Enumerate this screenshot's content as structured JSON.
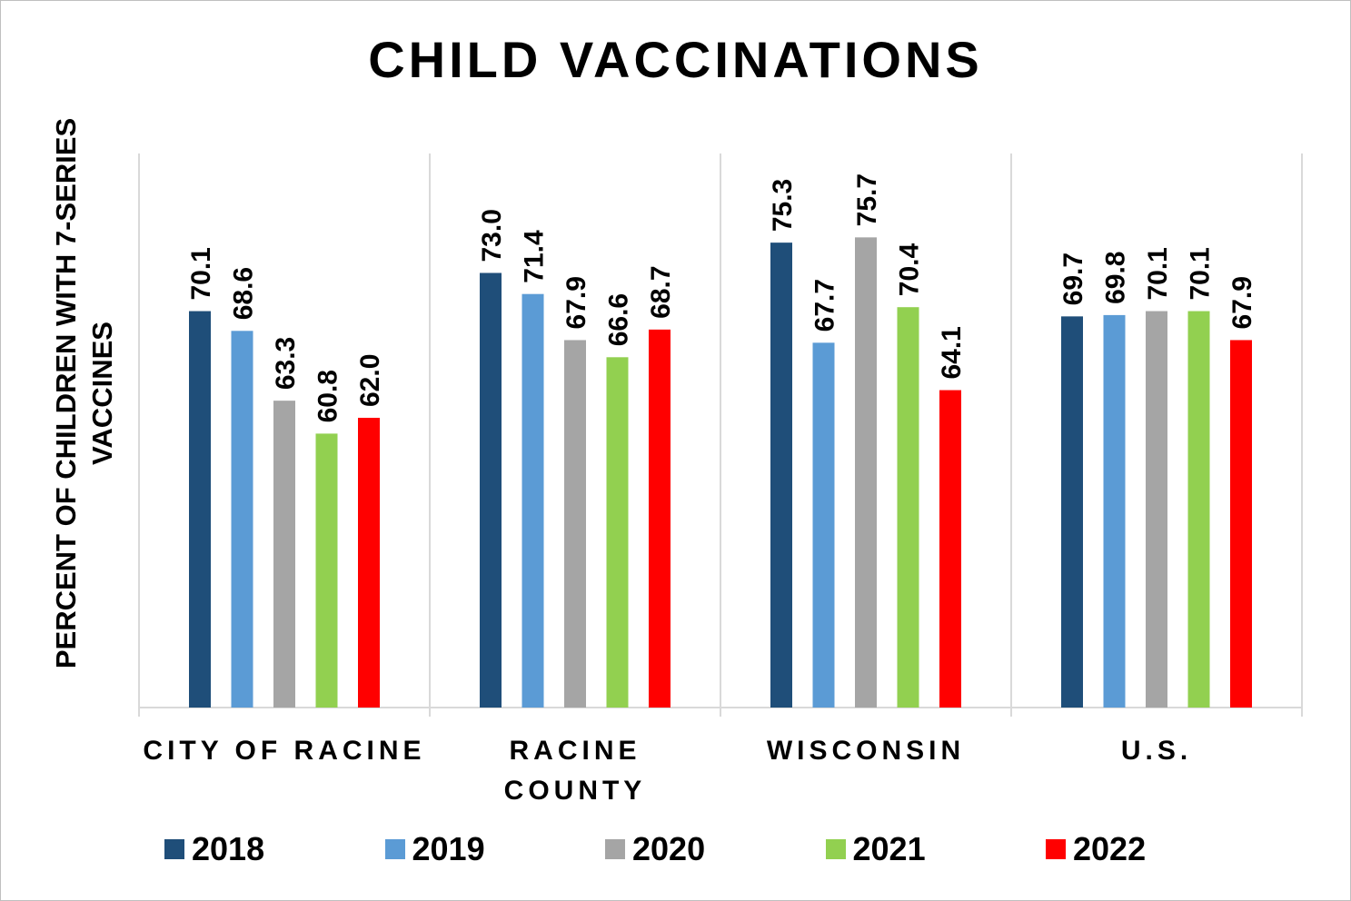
{
  "chart_data": {
    "type": "bar",
    "title": "CHILD VACCINATIONS",
    "ylabel": "PERCENT OF CHILDREN WITH 7-SERIES VACCINES",
    "xlabel": "",
    "categories": [
      "CITY OF RACINE",
      "RACINE COUNTY",
      "WISCONSIN",
      "U.S."
    ],
    "category_lines": [
      [
        "CITY OF RACINE"
      ],
      [
        "RACINE",
        "COUNTY"
      ],
      [
        "WISCONSIN"
      ],
      [
        "U.S."
      ]
    ],
    "series": [
      {
        "name": "2018",
        "color": "#1f4e79",
        "values": [
          70.1,
          73.0,
          75.3,
          69.7
        ],
        "labels": [
          "70.1",
          "73.0",
          "75.3",
          "69.7"
        ]
      },
      {
        "name": "2019",
        "color": "#5b9bd5",
        "values": [
          68.6,
          71.4,
          67.7,
          69.8
        ],
        "labels": [
          "68.6",
          "71.4",
          "67.7",
          "69.8"
        ]
      },
      {
        "name": "2020",
        "color": "#a5a5a5",
        "values": [
          63.3,
          67.9,
          75.7,
          70.1
        ],
        "labels": [
          "63.3",
          "67.9",
          "75.7",
          "70.1"
        ]
      },
      {
        "name": "2021",
        "color": "#92d050",
        "values": [
          60.8,
          66.6,
          70.4,
          70.1
        ],
        "labels": [
          "60.8",
          "66.6",
          "70.4",
          "70.1"
        ]
      },
      {
        "name": "2022",
        "color": "#ff0000",
        "values": [
          62.0,
          68.7,
          64.1,
          67.9
        ],
        "labels": [
          "62.0",
          "68.7",
          "64.1",
          "67.9"
        ]
      }
    ],
    "ylim": [
      40,
      80
    ],
    "y_axis_visible": false,
    "gridlines": "vertical separators between categories",
    "data_labels": "rotated above bars",
    "legend_position": "bottom"
  }
}
